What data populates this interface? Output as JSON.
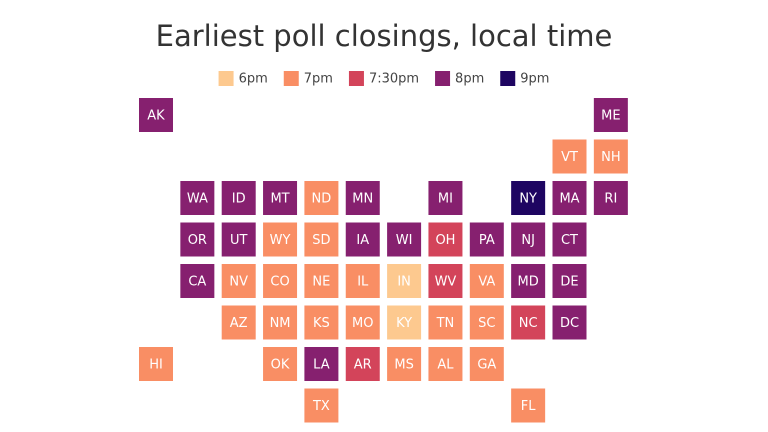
{
  "title": "Earliest poll closings, local time",
  "legend": [
    {
      "label": "6pm",
      "color": "#fdc98f"
    },
    {
      "label": "7pm",
      "color": "#f98e64"
    },
    {
      "label": "7:30pm",
      "color": "#d3445a"
    },
    {
      "label": "8pm",
      "color": "#86206f"
    },
    {
      "label": "9pm",
      "color": "#1e0561"
    }
  ],
  "tiles": [
    {
      "state": "AK",
      "time": "8pm"
    },
    {
      "state": "ME",
      "time": "8pm"
    },
    {
      "state": "VT",
      "time": "7pm"
    },
    {
      "state": "NH",
      "time": "7pm"
    },
    {
      "state": "WA",
      "time": "8pm"
    },
    {
      "state": "ID",
      "time": "8pm"
    },
    {
      "state": "MT",
      "time": "8pm"
    },
    {
      "state": "ND",
      "time": "7pm"
    },
    {
      "state": "MN",
      "time": "8pm"
    },
    {
      "state": "MI",
      "time": "8pm"
    },
    {
      "state": "NY",
      "time": "9pm"
    },
    {
      "state": "MA",
      "time": "8pm"
    },
    {
      "state": "RI",
      "time": "8pm"
    },
    {
      "state": "OR",
      "time": "8pm"
    },
    {
      "state": "UT",
      "time": "8pm"
    },
    {
      "state": "WY",
      "time": "7pm"
    },
    {
      "state": "SD",
      "time": "7pm"
    },
    {
      "state": "IA",
      "time": "8pm"
    },
    {
      "state": "WI",
      "time": "8pm"
    },
    {
      "state": "OH",
      "time": "7:30pm"
    },
    {
      "state": "PA",
      "time": "8pm"
    },
    {
      "state": "NJ",
      "time": "8pm"
    },
    {
      "state": "CT",
      "time": "8pm"
    },
    {
      "state": "CA",
      "time": "8pm"
    },
    {
      "state": "NV",
      "time": "7pm"
    },
    {
      "state": "CO",
      "time": "7pm"
    },
    {
      "state": "NE",
      "time": "7pm"
    },
    {
      "state": "IL",
      "time": "7pm"
    },
    {
      "state": "IN",
      "time": "6pm"
    },
    {
      "state": "WV",
      "time": "7:30pm"
    },
    {
      "state": "VA",
      "time": "7pm"
    },
    {
      "state": "MD",
      "time": "8pm"
    },
    {
      "state": "DE",
      "time": "8pm"
    },
    {
      "state": "AZ",
      "time": "7pm"
    },
    {
      "state": "NM",
      "time": "7pm"
    },
    {
      "state": "KS",
      "time": "7pm"
    },
    {
      "state": "MO",
      "time": "7pm"
    },
    {
      "state": "KY",
      "time": "6pm"
    },
    {
      "state": "TN",
      "time": "7pm"
    },
    {
      "state": "SC",
      "time": "7pm"
    },
    {
      "state": "NC",
      "time": "7:30pm"
    },
    {
      "state": "DC",
      "time": "8pm"
    },
    {
      "state": "HI",
      "time": "7pm"
    },
    {
      "state": "OK",
      "time": "7pm"
    },
    {
      "state": "LA",
      "time": "8pm"
    },
    {
      "state": "AR",
      "time": "7:30pm"
    },
    {
      "state": "MS",
      "time": "7pm"
    },
    {
      "state": "AL",
      "time": "7pm"
    },
    {
      "state": "GA",
      "time": "7pm"
    },
    {
      "state": "TX",
      "time": "7pm"
    },
    {
      "state": "FL",
      "time": "7pm"
    }
  ]
}
